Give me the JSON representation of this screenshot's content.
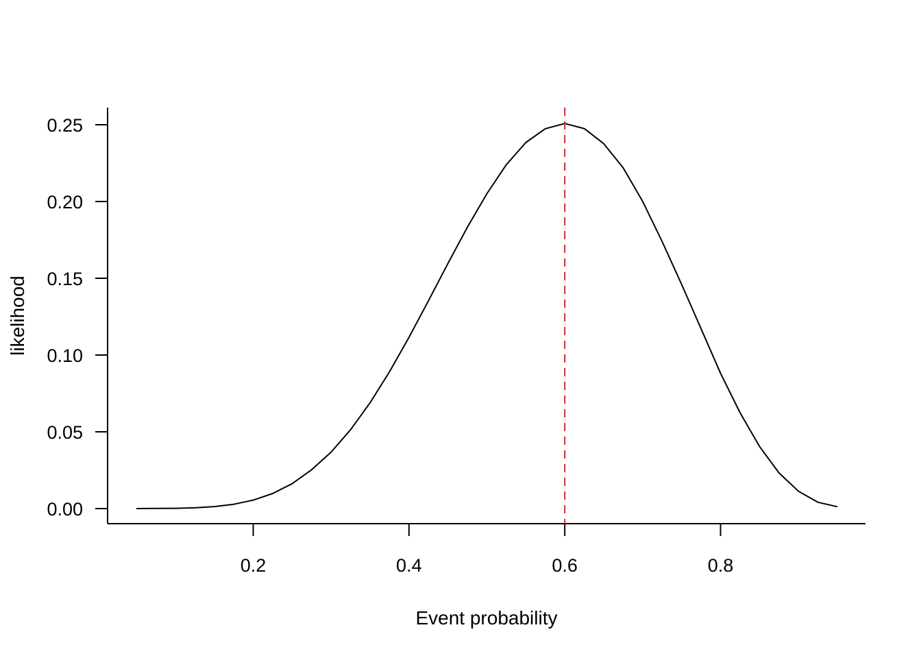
{
  "chart_data": {
    "type": "line",
    "xlabel": "Event probability",
    "ylabel": "likelihood",
    "xlim": [
      0.05,
      0.95
    ],
    "ylim": [
      0.0,
      0.25
    ],
    "x_ticks": [
      0.2,
      0.4,
      0.6,
      0.8
    ],
    "x_tick_labels": [
      "0.2",
      "0.4",
      "0.6",
      "0.8"
    ],
    "y_ticks": [
      0.0,
      0.05,
      0.1,
      0.15,
      0.2,
      0.25
    ],
    "y_tick_labels": [
      "0.00",
      "0.05",
      "0.10",
      "0.15",
      "0.20",
      "0.25"
    ],
    "grid": false,
    "series": [
      {
        "color": "#000000",
        "x": [
          0.05,
          0.075,
          0.1,
          0.125,
          0.15,
          0.175,
          0.2,
          0.225,
          0.25,
          0.275,
          0.3,
          0.325,
          0.35,
          0.375,
          0.4,
          0.425,
          0.45,
          0.475,
          0.5,
          0.525,
          0.55,
          0.575,
          0.6,
          0.625,
          0.65,
          0.675,
          0.7,
          0.725,
          0.75,
          0.775,
          0.8,
          0.825,
          0.85,
          0.875,
          0.9,
          0.925,
          0.95
        ],
        "y": [
          0.0,
          0.0001,
          0.0002,
          0.0005,
          0.0013,
          0.0028,
          0.0055,
          0.0098,
          0.0162,
          0.0253,
          0.0368,
          0.0514,
          0.0689,
          0.0891,
          0.1115,
          0.1354,
          0.1597,
          0.1833,
          0.2051,
          0.224,
          0.2384,
          0.2474,
          0.2508,
          0.2475,
          0.2377,
          0.2219,
          0.2001,
          0.1739,
          0.146,
          0.1171,
          0.0881,
          0.0625,
          0.0405,
          0.0232,
          0.0113,
          0.0041,
          0.0012
        ]
      }
    ],
    "reference_line": {
      "x": 0.6,
      "color": "#d62728",
      "style": "dashed"
    }
  }
}
